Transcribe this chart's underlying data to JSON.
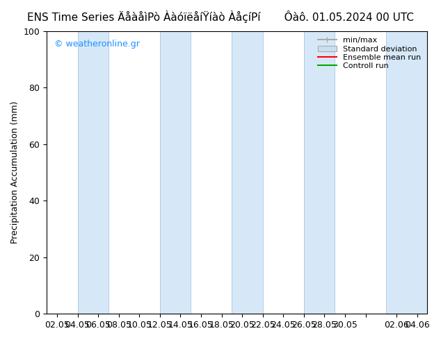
{
  "title": "ENS Time Series ÄåàåìPò ÀàóïëåíŸíàò ÀåçíPí       Ôàô. 01.05.2024 00 UTC",
  "ylabel": "Precipitation Accumulation (mm)",
  "watermark": "© weatheronline.gr",
  "ylim": [
    0,
    100
  ],
  "yticks": [
    0,
    20,
    40,
    60,
    80,
    100
  ],
  "xtick_labels": [
    "02.05",
    "04.05",
    "06.05",
    "08.05",
    "10.05",
    "12.05",
    "14.05",
    "16.05",
    "18.05",
    "20.05",
    "22.05",
    "24.05",
    "26.05",
    "28.05",
    "30.05",
    "",
    "02.06",
    "04.06"
  ],
  "background_color": "#ffffff",
  "plot_bg_color": "#ffffff",
  "band_color": "#d6e8f7",
  "band_edge_color": "#b0cce8",
  "legend_entries": [
    "min/max",
    "Standard deviation",
    "Ensemble mean run",
    "Controll run"
  ],
  "title_fontsize": 11,
  "tick_fontsize": 9,
  "ylabel_fontsize": 9,
  "watermark_color": "#1e90ff"
}
